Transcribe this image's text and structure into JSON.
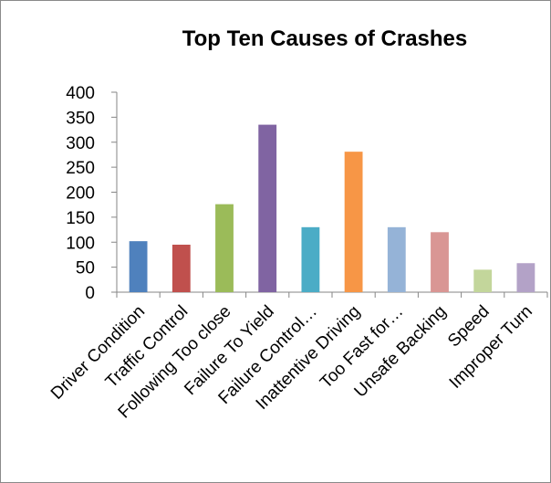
{
  "chart_data": {
    "type": "bar",
    "title": "Top Ten Causes of Crashes",
    "xlabel": "",
    "ylabel": "",
    "categories": [
      "Driver Condition",
      "Traffic Control",
      "Following Too close",
      "Failure To Yield",
      "Failure Control…",
      "Inattentive Driving",
      "Too Fast for…",
      "Unsafe Backing",
      "Speed",
      "Improper Turn"
    ],
    "values": [
      102,
      95,
      176,
      335,
      130,
      281,
      130,
      120,
      45,
      58
    ],
    "colors": [
      "#4f81bd",
      "#c0504d",
      "#9bbb59",
      "#8064a2",
      "#4bacc6",
      "#f79646",
      "#95b3d7",
      "#d99694",
      "#c3d69b",
      "#b3a2c7"
    ],
    "ylim": [
      0,
      400
    ],
    "yticks": [
      0,
      50,
      100,
      150,
      200,
      250,
      300,
      350,
      400
    ],
    "grid": false,
    "legend": "none"
  }
}
